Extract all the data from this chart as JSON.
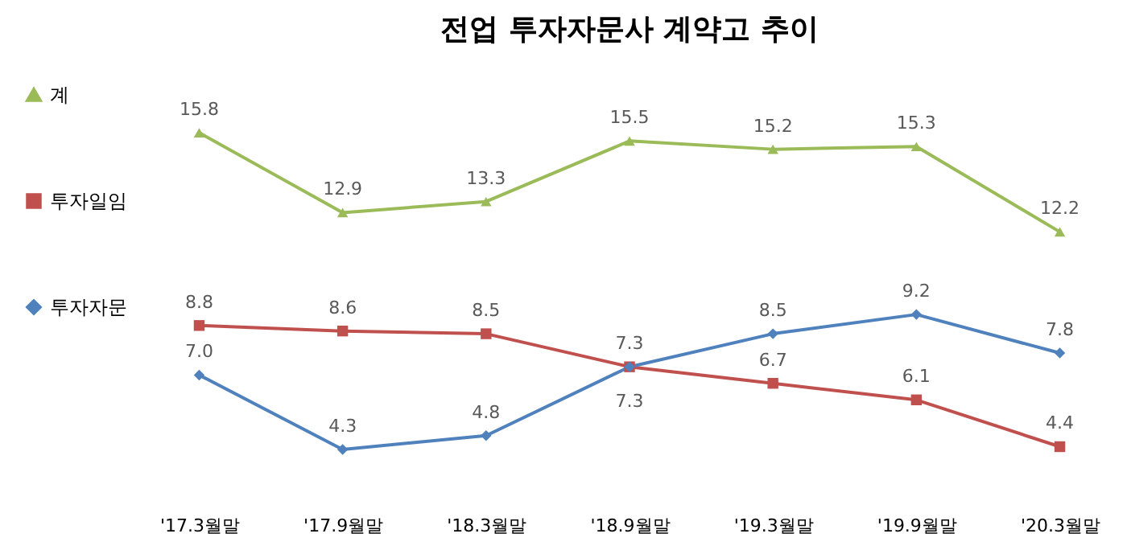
{
  "chart_data": {
    "type": "line",
    "title": "전업 투자자문사 계약고 추이",
    "categories": [
      "'17.3월말",
      "'17.9월말",
      "'18.3월말",
      "'18.9월말",
      "'19.3월말",
      "'19.9월말",
      "'20.3월말"
    ],
    "series": [
      {
        "name": "계",
        "color": "#9bbb59",
        "marker": "triangle",
        "values": [
          15.8,
          12.9,
          13.3,
          15.5,
          15.2,
          15.3,
          12.2
        ],
        "value_labels": [
          "15.8",
          "12.9",
          "13.3",
          "15.5",
          "15.2",
          "15.3",
          "12.2"
        ]
      },
      {
        "name": "투자일임",
        "color": "#c0504d",
        "marker": "square",
        "values": [
          8.8,
          8.6,
          8.5,
          7.3,
          6.7,
          6.1,
          4.4
        ],
        "value_labels": [
          "8.8",
          "8.6",
          "8.5",
          "7.3",
          "6.7",
          "6.1",
          "4.4"
        ]
      },
      {
        "name": "투자자문",
        "color": "#4f81bd",
        "marker": "diamond",
        "values": [
          7.0,
          4.3,
          4.8,
          7.3,
          8.5,
          9.2,
          7.8
        ],
        "value_labels": [
          "7.0",
          "4.3",
          "4.8",
          "7.3",
          "8.5",
          "9.2",
          "7.8"
        ]
      }
    ],
    "legend": "left",
    "grid": false,
    "line_style": "solid"
  }
}
